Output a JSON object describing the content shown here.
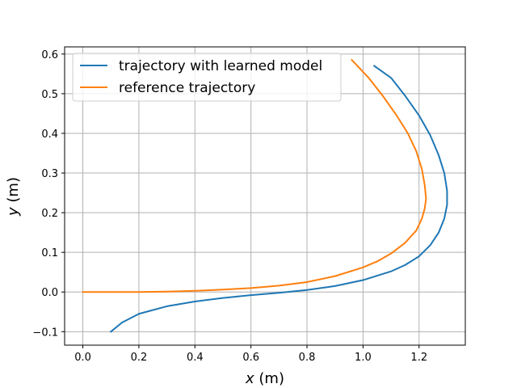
{
  "chart_data": {
    "type": "line",
    "title": "",
    "xlabel_var": "x",
    "xlabel_unit": "(m)",
    "ylabel_var": "y",
    "ylabel_unit": "(m)",
    "xlim": [
      -0.065,
      1.365
    ],
    "ylim": [
      -0.134,
      0.618
    ],
    "xticks": [
      0.0,
      0.2,
      0.4,
      0.6,
      0.8,
      1.0,
      1.2
    ],
    "xtick_labels": [
      "0.0",
      "0.2",
      "0.4",
      "0.6",
      "0.8",
      "1.0",
      "1.2"
    ],
    "yticks": [
      -0.1,
      0.0,
      0.1,
      0.2,
      0.3,
      0.4,
      0.5,
      0.6
    ],
    "ytick_labels": [
      "−0.1",
      "0.0",
      "0.1",
      "0.2",
      "0.3",
      "0.4",
      "0.5",
      "0.6"
    ],
    "grid": true,
    "legend_position": "top-left",
    "series": [
      {
        "name": "trajectory with learned model",
        "color": "#1f77b4",
        "x": [
          0.1,
          0.14,
          0.2,
          0.3,
          0.4,
          0.5,
          0.6,
          0.7,
          0.8,
          0.9,
          1.0,
          1.1,
          1.15,
          1.2,
          1.24,
          1.27,
          1.29,
          1.3,
          1.3,
          1.29,
          1.27,
          1.24,
          1.2,
          1.15,
          1.1,
          1.04
        ],
        "y": [
          -0.1,
          -0.077,
          -0.055,
          -0.036,
          -0.024,
          -0.015,
          -0.008,
          -0.002,
          0.005,
          0.015,
          0.03,
          0.052,
          0.068,
          0.09,
          0.118,
          0.15,
          0.185,
          0.22,
          0.255,
          0.3,
          0.345,
          0.395,
          0.445,
          0.495,
          0.54,
          0.57
        ]
      },
      {
        "name": "reference trajectory",
        "color": "#ff7f0e",
        "x": [
          0.0,
          0.1,
          0.2,
          0.3,
          0.4,
          0.5,
          0.6,
          0.7,
          0.8,
          0.9,
          1.0,
          1.05,
          1.1,
          1.15,
          1.19,
          1.21,
          1.22,
          1.225,
          1.22,
          1.21,
          1.19,
          1.16,
          1.12,
          1.07,
          1.02,
          0.96
        ],
        "y": [
          0.0,
          0.0,
          0.0,
          0.001,
          0.003,
          0.006,
          0.01,
          0.016,
          0.025,
          0.04,
          0.062,
          0.077,
          0.097,
          0.124,
          0.155,
          0.185,
          0.21,
          0.235,
          0.27,
          0.31,
          0.355,
          0.4,
          0.445,
          0.495,
          0.54,
          0.585
        ]
      }
    ]
  }
}
